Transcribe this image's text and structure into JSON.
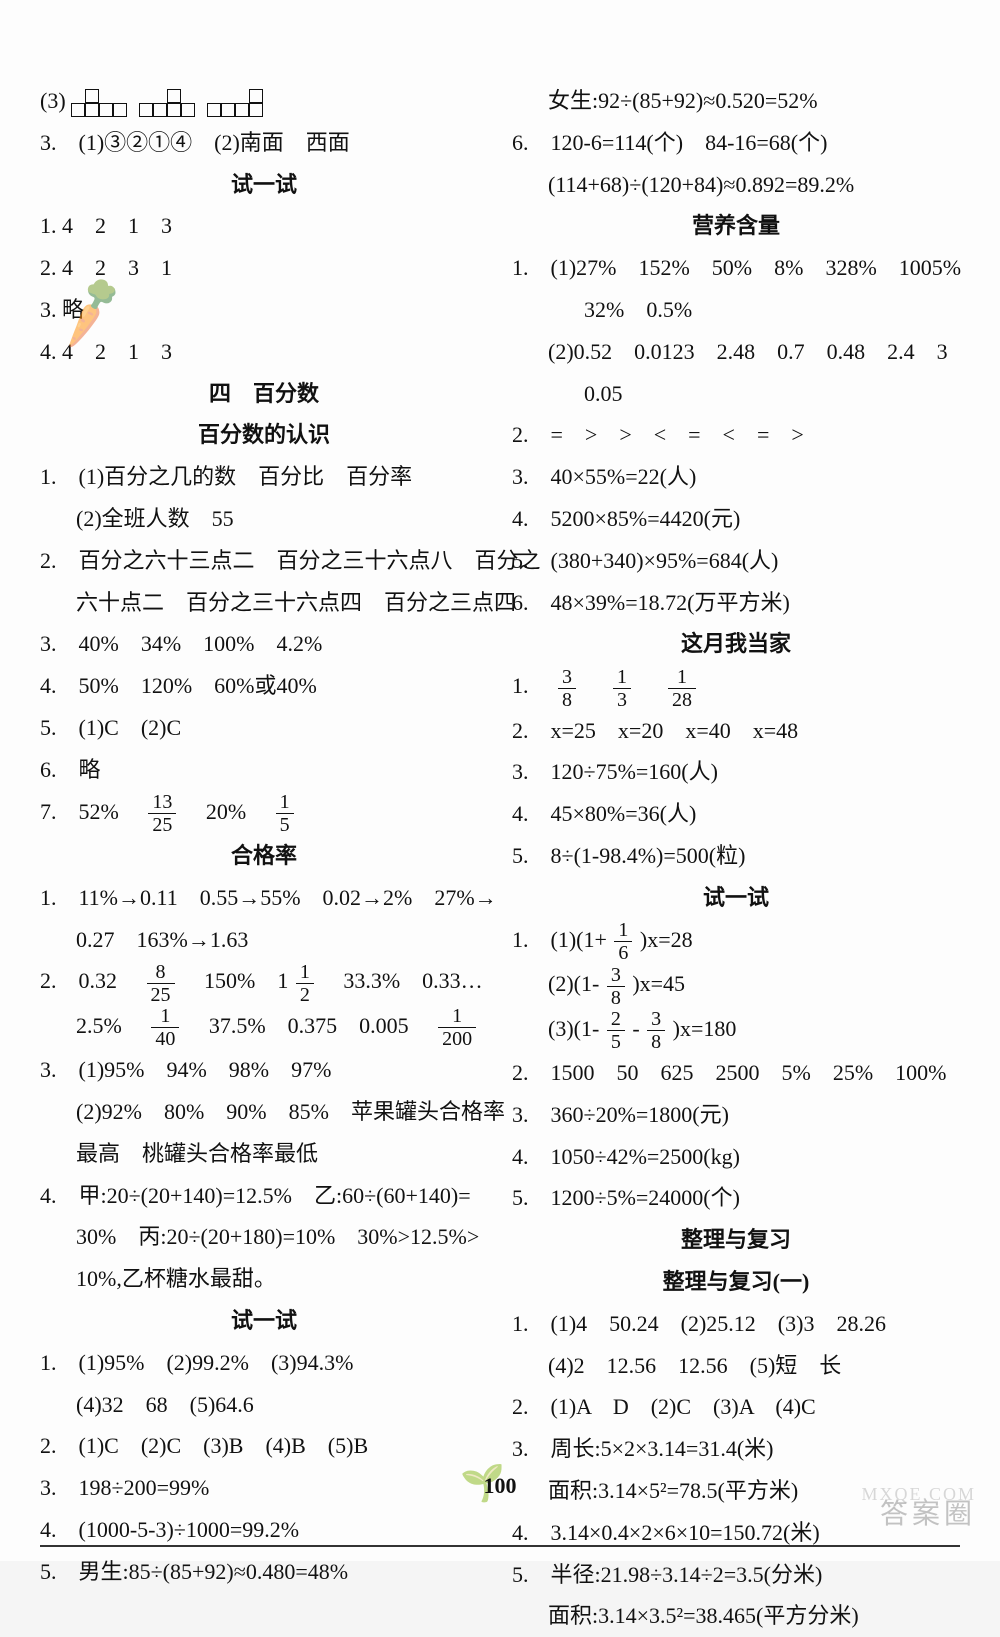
{
  "page_number": "100",
  "watermark_main": "答案圈",
  "watermark_sub": "MXQE.COM",
  "left": {
    "l1_label": "(3)",
    "l2": "3.　(1)③②①④　(2)南面　西面",
    "h_shiyishi1": "试一试",
    "l3": "1. 4　2　1　3",
    "l4": "2. 4　2　3　1",
    "l5": "3. 略",
    "l6": "4. 4　2　1　3",
    "h_si": "四　百分数",
    "h_renshi": "百分数的认识",
    "l7": "1.　(1)百分之几的数　百分比　百分率",
    "l8": "(2)全班人数　55",
    "l9": "2.　百分之六十三点二　百分之三十六点八　百分之",
    "l10": "六十点二　百分之三十六点四　百分之三点四",
    "l11": "3.　40%　34%　100%　4.2%",
    "l12": "4.　50%　120%　60%或40%",
    "l13": "5.　(1)C　(2)C",
    "l14": "6.　略",
    "l15a": "7.　52%　",
    "l15b": "　20%　",
    "h_hegelv": "合格率",
    "l16": "1.　11%→0.11　0.55→55%　0.02→2%　27%→",
    "l17": "0.27　163%→1.63",
    "l18a": "2.　0.32　",
    "l18b": "　150%　1",
    "l18c": "　33.3%　0.33…",
    "l19a": "2.5%　",
    "l19b": "　37.5%　0.375　0.005　",
    "l20": "3.　(1)95%　94%　98%　97%",
    "l21": "(2)92%　80%　90%　85%　苹果罐头合格率",
    "l22": "最高　桃罐头合格率最低",
    "l23": "4.　甲:20÷(20+140)=12.5%　乙:60÷(60+140)=",
    "l24": "30%　丙:20÷(20+180)=10%　30%>12.5%>",
    "l25": "10%,乙杯糖水最甜。",
    "h_shiyishi2": "试一试",
    "l26": "1.　(1)95%　(2)99.2%　(3)94.3%",
    "l27": "(4)32　68　(5)64.6",
    "l28": "2.　(1)C　(2)C　(3)B　(4)B　(5)B",
    "l29": "3.　198÷200=99%",
    "l30": "4.　(1000-5-3)÷1000=99.2%",
    "l31": "5.　男生:85÷(85+92)≈0.480=48%"
  },
  "right": {
    "r1": "女生:92÷(85+92)≈0.520=52%",
    "r2": "6.　120-6=114(个)　84-16=68(个)",
    "r3": "(114+68)÷(120+84)≈0.892=89.2%",
    "h_yingyang": "营养含量",
    "r4": "1.　(1)27%　152%　50%　8%　328%　1005%",
    "r5": "32%　0.5%",
    "r6": "(2)0.52　0.0123　2.48　0.7　0.48　2.4　3",
    "r7": "0.05",
    "r8": "2.　=　>　>　<　=　<　=　>",
    "r9": "3.　40×55%=22(人)",
    "r10": "4.　5200×85%=4420(元)",
    "r11": "5.　(380+340)×95%=684(人)",
    "r12": "6.　48×39%=18.72(万平方米)",
    "h_dangjia": "这月我当家",
    "r13a": "1.　",
    "r14": "2.　x=25　x=20　x=40　x=48",
    "r15": "3.　120÷75%=160(人)",
    "r16": "4.　45×80%=36(人)",
    "r17": "5.　8÷(1-98.4%)=500(粒)",
    "h_shiyishi3": "试一试",
    "r18a": "1.　(1)(1+",
    "r18b": ")x=28",
    "r19a": "(2)(1-",
    "r19b": ")x=45",
    "r20a": "(3)(1-",
    "r20b": "-",
    "r20c": ")x=180",
    "r21": "2.　1500　50　625　2500　5%　25%　100%",
    "r22": "3.　360÷20%=1800(元)",
    "r23": "4.　1050÷42%=2500(kg)",
    "r24": "5.　1200÷5%=24000(个)",
    "h_zhengli": "整理与复习",
    "h_zhengli1": "整理与复习(一)",
    "r25": "1.　(1)4　50.24　(2)25.12　(3)3　28.26",
    "r26": "(4)2　12.56　12.56　(5)短　长",
    "r27": "2.　(1)A　D　(2)C　(3)A　(4)C",
    "r28": "3.　周长:5×2×3.14=31.4(米)",
    "r29": "面积:3.14×5²=78.5(平方米)",
    "r30": "4.　3.14×0.4×2×6×10=150.72(米)",
    "r31": "5.　半径:21.98÷3.14÷2=3.5(分米)",
    "r32": "面积:3.14×3.5²=38.465(平方分米)"
  }
}
